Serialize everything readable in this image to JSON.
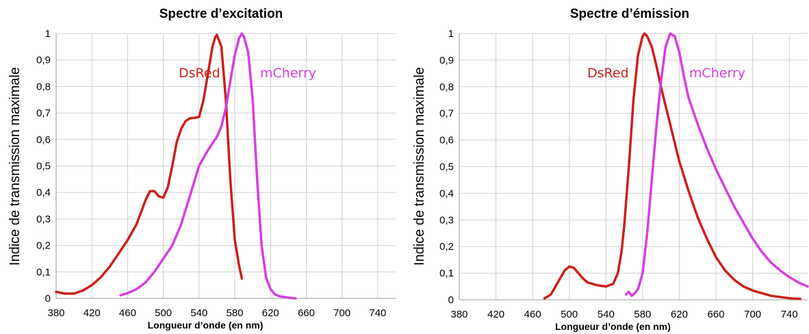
{
  "chart_data": [
    {
      "type": "line",
      "title": "Spectre d’excitation",
      "xlabel": "Longueur d’onde (en nm)",
      "ylabel": "Indice de transmission maximale",
      "xlim": [
        380,
        760
      ],
      "ylim": [
        0,
        1
      ],
      "xticks": [
        "380",
        "420",
        "460",
        "500",
        "540",
        "580",
        "620",
        "660",
        "700",
        "740"
      ],
      "yticks": [
        "0",
        "0,1",
        "0,2",
        "0,3",
        "0,4",
        "0,5",
        "0,6",
        "0,7",
        "0,8",
        "0,9",
        "1"
      ],
      "grid": true,
      "series": [
        {
          "name": "DsRed",
          "color": "#cc1f1a",
          "x": [
            380,
            390,
            400,
            410,
            420,
            430,
            440,
            450,
            460,
            470,
            480,
            485,
            490,
            495,
            500,
            505,
            510,
            515,
            520,
            525,
            530,
            535,
            540,
            545,
            550,
            555,
            558,
            560,
            565,
            570,
            575,
            580,
            585,
            588
          ],
          "y": [
            0.025,
            0.018,
            0.018,
            0.03,
            0.05,
            0.08,
            0.12,
            0.17,
            0.22,
            0.28,
            0.37,
            0.405,
            0.405,
            0.385,
            0.38,
            0.42,
            0.5,
            0.59,
            0.64,
            0.67,
            0.68,
            0.682,
            0.685,
            0.75,
            0.85,
            0.95,
            0.985,
            0.995,
            0.95,
            0.75,
            0.45,
            0.22,
            0.12,
            0.075
          ]
        },
        {
          "name": "mCherry",
          "color": "#d63ee0",
          "x": [
            452,
            460,
            470,
            480,
            490,
            500,
            510,
            520,
            530,
            540,
            550,
            560,
            565,
            570,
            575,
            580,
            585,
            588,
            590,
            595,
            600,
            605,
            610,
            615,
            620,
            625,
            630,
            640,
            648
          ],
          "y": [
            0.012,
            0.02,
            0.035,
            0.06,
            0.1,
            0.15,
            0.2,
            0.28,
            0.39,
            0.5,
            0.56,
            0.61,
            0.65,
            0.72,
            0.82,
            0.92,
            0.985,
            1.0,
            0.99,
            0.93,
            0.75,
            0.45,
            0.2,
            0.08,
            0.035,
            0.015,
            0.008,
            0.003,
            0.0
          ]
        }
      ],
      "annotations": [
        "DsRed",
        "mCherry"
      ]
    },
    {
      "type": "line",
      "title": "Spectre d’émission",
      "xlabel": "Longueur d’onde (en nm)",
      "ylabel": "Indice de transmission maximale",
      "xlim": [
        380,
        760
      ],
      "ylim": [
        0,
        1
      ],
      "xticks": [
        "380",
        "420",
        "460",
        "500",
        "540",
        "580",
        "620",
        "660",
        "700",
        "740"
      ],
      "yticks": [
        "0",
        "0,1",
        "0,2",
        "0,3",
        "0,4",
        "0,5",
        "0,6",
        "0,7",
        "0,8",
        "0,9",
        "1"
      ],
      "grid": true,
      "series": [
        {
          "name": "DsRed",
          "color": "#cc1f1a",
          "x": [
            473,
            480,
            485,
            490,
            495,
            500,
            505,
            510,
            515,
            520,
            530,
            540,
            548,
            553,
            557,
            560,
            565,
            570,
            575,
            580,
            582,
            585,
            590,
            595,
            600,
            610,
            620,
            630,
            640,
            650,
            660,
            670,
            680,
            690,
            700,
            720,
            740,
            752
          ],
          "y": [
            0.005,
            0.02,
            0.05,
            0.08,
            0.11,
            0.125,
            0.12,
            0.1,
            0.08,
            0.065,
            0.055,
            0.05,
            0.06,
            0.1,
            0.18,
            0.28,
            0.5,
            0.75,
            0.92,
            0.99,
            1.0,
            0.99,
            0.95,
            0.88,
            0.8,
            0.66,
            0.52,
            0.41,
            0.31,
            0.23,
            0.16,
            0.11,
            0.075,
            0.05,
            0.035,
            0.015,
            0.006,
            0.003
          ]
        },
        {
          "name": "mCherry",
          "color": "#d63ee0",
          "x": [
            562,
            565,
            568,
            570,
            575,
            580,
            585,
            590,
            595,
            600,
            605,
            610,
            615,
            620,
            625,
            630,
            640,
            650,
            660,
            670,
            680,
            690,
            700,
            710,
            720,
            730,
            740,
            750,
            760
          ],
          "y": [
            0.02,
            0.03,
            0.015,
            0.02,
            0.04,
            0.1,
            0.25,
            0.45,
            0.65,
            0.82,
            0.95,
            1.0,
            0.99,
            0.93,
            0.84,
            0.76,
            0.66,
            0.57,
            0.49,
            0.42,
            0.35,
            0.29,
            0.23,
            0.18,
            0.14,
            0.11,
            0.085,
            0.065,
            0.05
          ]
        }
      ],
      "annotations": [
        "DsRed",
        "mCherry"
      ]
    }
  ]
}
